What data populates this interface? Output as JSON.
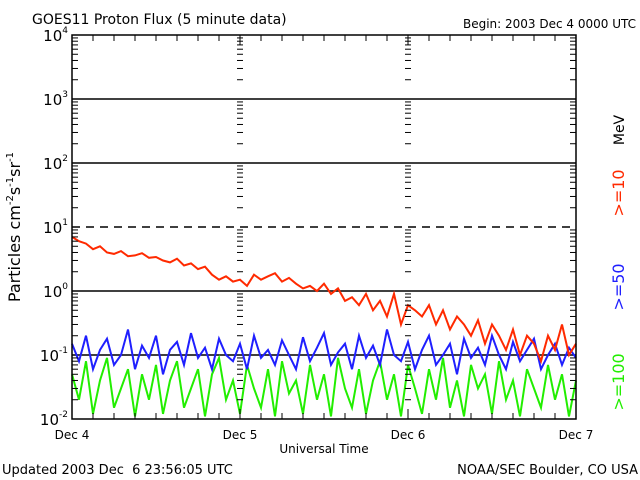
{
  "chart_data": {
    "type": "line",
    "title": "GOES11 Proton Flux (5 minute data)",
    "begin_label": "Begin: 2003 Dec 4 0000 UTC",
    "xlabel": "Universal Time",
    "ylabel_parts": [
      "Particles cm",
      "-2",
      "s",
      "-1",
      "sr",
      "-1"
    ],
    "y_scale": "log",
    "ylim": [
      0.01,
      10000
    ],
    "y_ticks": [
      {
        "base": "10",
        "exp": "4",
        "value": 10000
      },
      {
        "base": "10",
        "exp": "3",
        "value": 1000
      },
      {
        "base": "10",
        "exp": "2",
        "value": 100
      },
      {
        "base": "10",
        "exp": "1",
        "value": 10
      },
      {
        "base": "10",
        "exp": "0",
        "value": 1
      },
      {
        "base": "10",
        "exp": "-1",
        "value": 0.1
      },
      {
        "base": "10",
        "exp": "-2",
        "value": 0.01
      }
    ],
    "x_unit": "hours since 2003 Dec 4 0000 UTC",
    "xlim": [
      0,
      72
    ],
    "x_ticks": [
      {
        "label": "Dec 4",
        "value": 0
      },
      {
        "label": "Dec 5",
        "value": 24
      },
      {
        "label": "Dec 6",
        "value": 48
      },
      {
        "label": "Dec 7",
        "value": 72
      }
    ],
    "grid": {
      "solid": [
        1000,
        100,
        1,
        0.1
      ],
      "dashed": [
        10
      ]
    },
    "legend_placement": "right",
    "legend_unit": "MeV",
    "series": [
      {
        "name": ">=10",
        "color": "#ff2a00",
        "values": [
          7,
          6,
          5.5,
          4.5,
          5,
          4,
          3.8,
          4.2,
          3.5,
          3.6,
          3.9,
          3.3,
          3.4,
          3,
          2.8,
          3.2,
          2.5,
          2.7,
          2.2,
          2.4,
          1.8,
          1.5,
          1.7,
          1.4,
          1.5,
          1.2,
          1.8,
          1.5,
          1.7,
          1.9,
          1.4,
          1.6,
          1.3,
          1.1,
          1.2,
          1.0,
          1.3,
          0.9,
          1.1,
          0.7,
          0.8,
          0.6,
          0.9,
          0.5,
          0.7,
          0.4,
          0.9,
          0.3,
          0.6,
          0.5,
          0.4,
          0.6,
          0.3,
          0.5,
          0.25,
          0.4,
          0.3,
          0.2,
          0.35,
          0.15,
          0.3,
          0.2,
          0.12,
          0.25,
          0.1,
          0.2,
          0.15,
          0.08,
          0.2,
          0.12,
          0.3,
          0.1,
          0.15
        ]
      },
      {
        "name": ">=50",
        "color": "#1f1fff",
        "values": [
          0.15,
          0.08,
          0.2,
          0.06,
          0.12,
          0.18,
          0.07,
          0.1,
          0.25,
          0.06,
          0.14,
          0.09,
          0.2,
          0.05,
          0.12,
          0.16,
          0.07,
          0.22,
          0.09,
          0.13,
          0.06,
          0.18,
          0.1,
          0.08,
          0.15,
          0.06,
          0.2,
          0.09,
          0.12,
          0.07,
          0.17,
          0.1,
          0.06,
          0.19,
          0.08,
          0.13,
          0.22,
          0.07,
          0.11,
          0.15,
          0.06,
          0.2,
          0.09,
          0.14,
          0.07,
          0.25,
          0.1,
          0.08,
          0.16,
          0.06,
          0.12,
          0.2,
          0.07,
          0.1,
          0.15,
          0.05,
          0.18,
          0.09,
          0.13,
          0.07,
          0.2,
          0.1,
          0.06,
          0.16,
          0.08,
          0.12,
          0.18,
          0.06,
          0.1,
          0.15,
          0.07,
          0.13,
          0.09
        ]
      },
      {
        "name": ">=100",
        "color": "#22ee00",
        "values": [
          0.05,
          0.02,
          0.08,
          0.012,
          0.04,
          0.09,
          0.015,
          0.03,
          0.06,
          0.011,
          0.05,
          0.02,
          0.07,
          0.012,
          0.04,
          0.08,
          0.015,
          0.03,
          0.06,
          0.011,
          0.05,
          0.09,
          0.02,
          0.04,
          0.012,
          0.07,
          0.03,
          0.015,
          0.06,
          0.011,
          0.08,
          0.025,
          0.04,
          0.012,
          0.07,
          0.02,
          0.05,
          0.011,
          0.09,
          0.03,
          0.015,
          0.06,
          0.012,
          0.04,
          0.08,
          0.02,
          0.05,
          0.011,
          0.07,
          0.03,
          0.012,
          0.06,
          0.02,
          0.09,
          0.015,
          0.04,
          0.011,
          0.07,
          0.03,
          0.05,
          0.012,
          0.08,
          0.02,
          0.04,
          0.011,
          0.06,
          0.03,
          0.015,
          0.07,
          0.02,
          0.05,
          0.011,
          0.04
        ]
      }
    ]
  },
  "footer": {
    "updated": "Updated 2003 Dec  6 23:56:05 UTC",
    "credit": "NOAA/SEC Boulder, CO USA"
  }
}
